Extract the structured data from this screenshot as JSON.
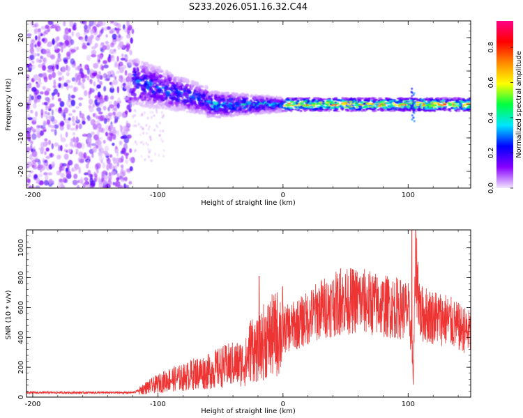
{
  "title": "S233.2026.051.16.32.C44",
  "chart_data": [
    {
      "type": "heatmap",
      "name": "spectrogram",
      "xlabel": "Height of straight line (km)",
      "ylabel": "Frequency (Hz)",
      "xlim": [
        -205,
        150
      ],
      "ylim": [
        -25,
        25
      ],
      "xticks": [
        -200,
        -100,
        0,
        100
      ],
      "yticks": [
        -20,
        -10,
        0,
        10,
        20
      ],
      "colorbar": {
        "label": "Normalized spectral amplitude",
        "range": [
          0.0,
          0.95
        ],
        "ticks": [
          "0.0",
          "0.2",
          "0.4",
          "0.6",
          "0.8"
        ],
        "colors": [
          "#f2e6ff",
          "#8800ff",
          "#0000ff",
          "#00e5ff",
          "#00ff40",
          "#ffff00",
          "#ff8800",
          "#ff0000",
          "#ff0088"
        ]
      },
      "regions": [
        {
          "x_range": [
            -205,
            -120
          ],
          "freq_range": [
            -25,
            25
          ],
          "amplitude": 0.05,
          "description": "noise"
        },
        {
          "x_range": [
            -120,
            -60
          ],
          "freq_center_start": 7,
          "freq_center_end": 1,
          "amplitude": 0.25
        },
        {
          "x_range": [
            -60,
            0
          ],
          "freq_center": 0,
          "amplitude": 0.35
        },
        {
          "x_range": [
            0,
            150
          ],
          "freq_center": 0,
          "amplitude": 0.8
        }
      ]
    },
    {
      "type": "line",
      "name": "snr",
      "xlabel": "Height of straight line (km)",
      "ylabel": "SNR (10 * v/v)",
      "xlim": [
        -205,
        150
      ],
      "ylim": [
        0,
        1120
      ],
      "xticks": [
        -200,
        -100,
        0,
        100
      ],
      "yticks": [
        0,
        200,
        400,
        600,
        800,
        1000
      ],
      "color": "#ee3333",
      "series": [
        {
          "name": "SNR",
          "x": [
            -205,
            -180,
            -150,
            -120,
            -110,
            -100,
            -90,
            -80,
            -70,
            -60,
            -50,
            -40,
            -30,
            -25,
            -20,
            -15,
            -10,
            0,
            10,
            20,
            30,
            40,
            50,
            60,
            70,
            80,
            90,
            100,
            103,
            104,
            106,
            110,
            120,
            130,
            140,
            150
          ],
          "y": [
            30,
            30,
            30,
            30,
            60,
            90,
            120,
            130,
            160,
            170,
            200,
            220,
            230,
            340,
            300,
            380,
            400,
            450,
            480,
            530,
            590,
            620,
            640,
            650,
            630,
            610,
            600,
            580,
            400,
            100,
            900,
            560,
            540,
            520,
            470,
            430
          ],
          "spikes": [
            {
              "x": -19,
              "y": 810
            },
            {
              "x": 46,
              "y": 860
            },
            {
              "x": 103,
              "y": 1120
            }
          ]
        }
      ]
    }
  ]
}
